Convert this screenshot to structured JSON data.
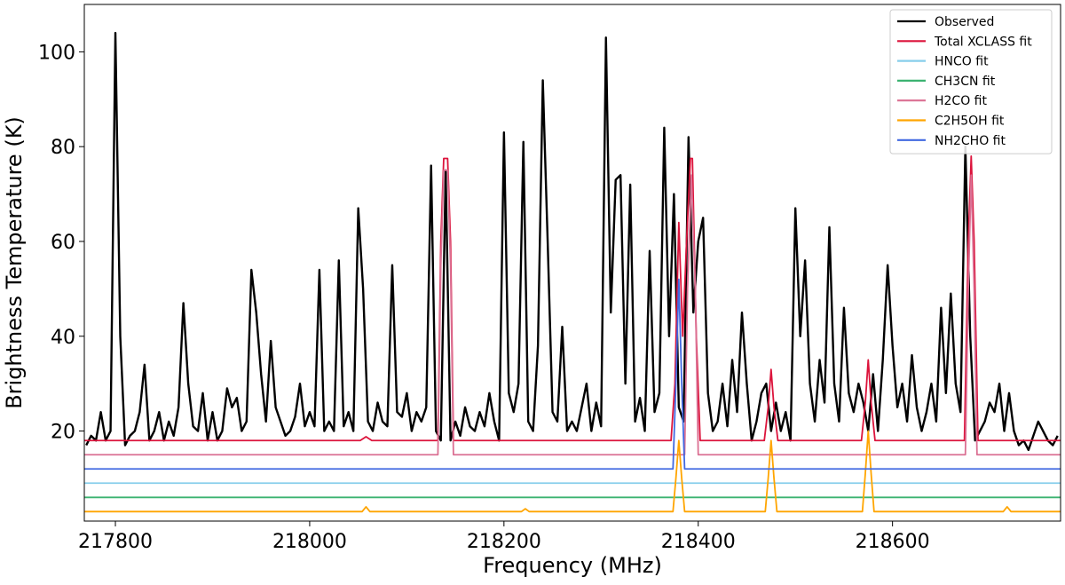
{
  "chart_data": {
    "type": "line",
    "xlabel": "Frequency (MHz)",
    "ylabel": "Brightness Temperature (K)",
    "xlim": [
      217768,
      218773
    ],
    "ylim": [
      1,
      110
    ],
    "xticks": [
      217800,
      218000,
      218200,
      218400,
      218600
    ],
    "yticks": [
      20,
      40,
      60,
      80,
      100
    ],
    "legend": "upper right",
    "series": [
      {
        "name": "Observed",
        "color": "#000000",
        "x": [
          217770,
          217775,
          217780,
          217785,
          217790,
          217795,
          217800,
          217805,
          217810,
          217815,
          217820,
          217825,
          217830,
          217835,
          217840,
          217845,
          217850,
          217855,
          217860,
          217865,
          217870,
          217875,
          217880,
          217885,
          217890,
          217895,
          217900,
          217905,
          217910,
          217915,
          217920,
          217925,
          217930,
          217935,
          217940,
          217945,
          217950,
          217955,
          217960,
          217965,
          217970,
          217975,
          217980,
          217985,
          217990,
          217995,
          218000,
          218005,
          218010,
          218015,
          218020,
          218025,
          218030,
          218035,
          218040,
          218045,
          218050,
          218055,
          218060,
          218065,
          218070,
          218075,
          218080,
          218085,
          218090,
          218095,
          218100,
          218105,
          218110,
          218115,
          218120,
          218125,
          218130,
          218135,
          218140,
          218145,
          218150,
          218155,
          218160,
          218165,
          218170,
          218175,
          218180,
          218185,
          218190,
          218195,
          218200,
          218205,
          218210,
          218215,
          218220,
          218225,
          218230,
          218235,
          218240,
          218245,
          218250,
          218255,
          218260,
          218265,
          218270,
          218275,
          218280,
          218285,
          218290,
          218295,
          218300,
          218305,
          218310,
          218315,
          218320,
          218325,
          218330,
          218335,
          218340,
          218345,
          218350,
          218355,
          218360,
          218365,
          218370,
          218375,
          218380,
          218385,
          218390,
          218395,
          218400,
          218405,
          218410,
          218415,
          218420,
          218425,
          218430,
          218435,
          218440,
          218445,
          218450,
          218455,
          218460,
          218465,
          218470,
          218475,
          218480,
          218485,
          218490,
          218495,
          218500,
          218505,
          218510,
          218515,
          218520,
          218525,
          218530,
          218535,
          218540,
          218545,
          218550,
          218555,
          218560,
          218565,
          218570,
          218575,
          218580,
          218585,
          218590,
          218595,
          218600,
          218605,
          218610,
          218615,
          218620,
          218625,
          218630,
          218635,
          218640,
          218645,
          218650,
          218655,
          218660,
          218665,
          218670,
          218675,
          218680,
          218685,
          218690,
          218695,
          218700,
          218705,
          218710,
          218715,
          218720,
          218725,
          218730,
          218735,
          218740,
          218745,
          218750,
          218755,
          218760,
          218765,
          218770
        ],
        "values": [
          17,
          19,
          18,
          24,
          18,
          20,
          104,
          40,
          17,
          19,
          20,
          24,
          34,
          18,
          20,
          24,
          18,
          22,
          19,
          25,
          47,
          30,
          21,
          20,
          28,
          18,
          24,
          18,
          20,
          29,
          25,
          27,
          20,
          22,
          54,
          45,
          32,
          22,
          39,
          25,
          22,
          19,
          20,
          23,
          30,
          21,
          24,
          21,
          54,
          20,
          22,
          20,
          56,
          21,
          24,
          20,
          67,
          50,
          22,
          20,
          26,
          22,
          21,
          55,
          24,
          23,
          28,
          20,
          24,
          22,
          25,
          76,
          20,
          18,
          75,
          18,
          22,
          19,
          25,
          21,
          20,
          24,
          21,
          28,
          22,
          18,
          83,
          28,
          24,
          30,
          81,
          22,
          20,
          38,
          94,
          60,
          24,
          22,
          42,
          20,
          22,
          20,
          25,
          30,
          20,
          26,
          21,
          103,
          45,
          73,
          74,
          30,
          72,
          22,
          27,
          20,
          58,
          24,
          28,
          84,
          40,
          70,
          25,
          22,
          82,
          45,
          60,
          65,
          28,
          20,
          22,
          30,
          21,
          35,
          24,
          45,
          30,
          18,
          22,
          28,
          30,
          20,
          26,
          20,
          24,
          18,
          67,
          40,
          56,
          30,
          22,
          35,
          26,
          63,
          30,
          22,
          46,
          28,
          24,
          30,
          26,
          20,
          32,
          20,
          35,
          55,
          38,
          25,
          30,
          22,
          36,
          25,
          20,
          24,
          30,
          22,
          46,
          28,
          49,
          30,
          24,
          80,
          40,
          18,
          20,
          22,
          26,
          24,
          30,
          20,
          28,
          20,
          17,
          18,
          16,
          19,
          22,
          20,
          18,
          17,
          19
        ]
      },
      {
        "name": "Total XCLASS fit",
        "color": "#dc143c",
        "x": [
          217768,
          218052,
          218058,
          218064,
          218132,
          218135,
          218138,
          218142,
          218145,
          218148,
          218372,
          218376,
          218380,
          218384,
          218388,
          218392,
          218394,
          218398,
          218402,
          218468,
          218472,
          218475,
          218478,
          218482,
          218568,
          218572,
          218575,
          218578,
          218582,
          218674,
          218678,
          218681,
          218684,
          218688,
          218773
        ],
        "values": [
          18,
          18,
          18.8,
          18,
          18,
          60,
          77.5,
          77.5,
          60,
          18,
          18,
          30,
          64,
          40,
          60,
          77.5,
          77.5,
          40,
          18,
          18,
          25,
          33,
          25,
          18,
          18,
          26,
          35,
          26,
          18,
          18,
          60,
          78,
          60,
          18,
          18
        ]
      },
      {
        "name": "HNCO fit",
        "color": "#87ceeb",
        "x": [
          217768,
          218773
        ],
        "values": [
          9,
          9
        ]
      },
      {
        "name": "CH3CN fit",
        "color": "#3cb371",
        "x": [
          217768,
          218773
        ],
        "values": [
          6,
          6
        ]
      },
      {
        "name": "H2CO fit",
        "color": "#db7093",
        "x": [
          217768,
          218132,
          218135,
          218138,
          218142,
          218145,
          218148,
          218386,
          218389,
          218393,
          218397,
          218400,
          218675,
          218678,
          218681,
          218684,
          218687,
          218773
        ],
        "values": [
          15,
          15,
          55,
          75,
          75,
          55,
          15,
          15,
          50,
          74,
          50,
          15,
          15,
          50,
          74,
          50,
          15,
          15
        ]
      },
      {
        "name": "C2H5OH fit",
        "color": "#ffa500",
        "x": [
          217768,
          218054,
          218058,
          218062,
          218218,
          218222,
          218226,
          218374,
          218377,
          218380,
          218383,
          218386,
          218469,
          218472,
          218475,
          218478,
          218481,
          218569,
          218572,
          218575,
          218578,
          218581,
          218714,
          218718,
          218722,
          218773
        ],
        "values": [
          3,
          3,
          4,
          3,
          3,
          3.6,
          3,
          3,
          10,
          18,
          10,
          3,
          3,
          10,
          18,
          10,
          3,
          3,
          11,
          20,
          11,
          3,
          3,
          4,
          3,
          3
        ]
      },
      {
        "name": "NH2CHO fit",
        "color": "#4169e1",
        "x": [
          217768,
          218374,
          218377,
          218380,
          218383,
          218386,
          218773
        ],
        "values": [
          12,
          12,
          30,
          52,
          30,
          12,
          12
        ]
      }
    ]
  }
}
